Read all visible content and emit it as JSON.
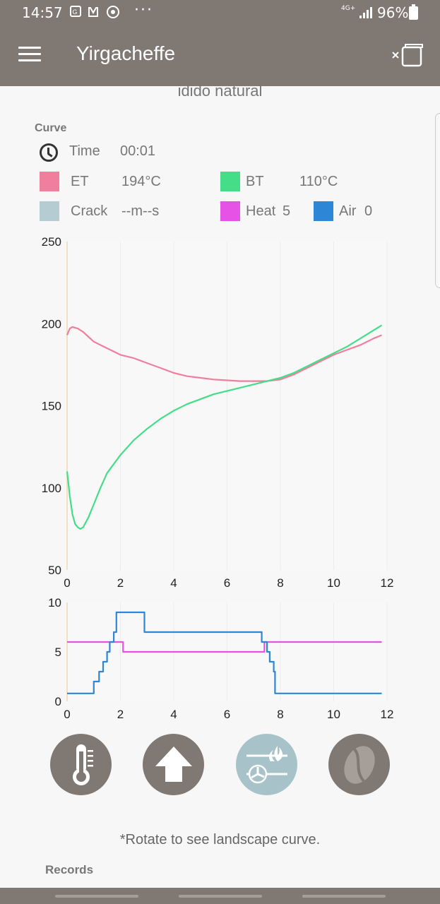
{
  "status_bar": {
    "time": "14:57",
    "network": "4G+",
    "battery": "96%"
  },
  "app_bar": {
    "title": "Yirgacheffe"
  },
  "subtitle": "idido natural",
  "curve_section": {
    "label": "Curve",
    "time_label": "Time",
    "time_value": "00:01",
    "et_label": "ET",
    "et_value": "194°C",
    "bt_label": "BT",
    "bt_value": "110°C",
    "crack_label": "Crack",
    "crack_value": "--m--s",
    "heat_label": "Heat",
    "heat_value": "5",
    "air_label": "Air",
    "air_value": "0"
  },
  "colors": {
    "et": "#ef7f9c",
    "bt": "#44dd88",
    "crack": "#b4ccd2",
    "heat": "#e552e5",
    "air": "#2e86d6",
    "appbar": "#807872",
    "active_button": "#a7c3c9"
  },
  "chart_data": [
    {
      "type": "line",
      "xlim": [
        0,
        12
      ],
      "ylim": [
        50,
        250
      ],
      "x_ticks": [
        "0",
        "2",
        "4",
        "6",
        "8",
        "10",
        "12"
      ],
      "y_ticks": [
        "250",
        "200",
        "150",
        "100",
        "50"
      ],
      "series": [
        {
          "name": "ET",
          "color": "#ef7f9c",
          "x": [
            0,
            0.1,
            0.2,
            0.4,
            0.6,
            0.8,
            1,
            1.5,
            2,
            2.5,
            3,
            3.5,
            4,
            4.5,
            5,
            5.5,
            6,
            6.5,
            7,
            7.5,
            8,
            8.5,
            9,
            9.5,
            10,
            10.5,
            11,
            11.5,
            11.8
          ],
          "y": [
            193,
            197,
            198,
            197,
            195,
            192,
            189,
            185,
            181,
            179,
            176,
            173,
            170,
            168,
            167,
            166,
            165.5,
            165,
            165,
            165,
            166,
            169,
            173,
            177,
            181,
            184,
            187,
            191,
            193
          ]
        },
        {
          "name": "BT",
          "color": "#44dd88",
          "x": [
            0,
            0.1,
            0.2,
            0.3,
            0.4,
            0.5,
            0.6,
            0.8,
            1,
            1.25,
            1.5,
            2,
            2.5,
            3,
            3.5,
            4,
            4.5,
            5,
            5.5,
            6,
            6.5,
            7,
            7.5,
            8,
            8.5,
            9,
            9.5,
            10,
            10.5,
            11,
            11.5,
            11.8
          ],
          "y": [
            110,
            95,
            84,
            78,
            76,
            75,
            76,
            82,
            90,
            100,
            109,
            120,
            129,
            136,
            142,
            147,
            151,
            154,
            157,
            159,
            161,
            163,
            165,
            167,
            170,
            174,
            178,
            182,
            186,
            191,
            196,
            199
          ]
        }
      ]
    },
    {
      "type": "line",
      "xlim": [
        0,
        12
      ],
      "ylim": [
        0,
        10
      ],
      "x_ticks": [
        "0",
        "2",
        "4",
        "6",
        "8",
        "10",
        "12"
      ],
      "y_ticks": [
        "10",
        "5",
        "0"
      ],
      "series": [
        {
          "name": "Heat",
          "color": "#e552e5",
          "x": [
            0,
            2.1,
            2.1,
            7.4,
            7.4,
            11.8
          ],
          "y": [
            6,
            6,
            5,
            5,
            6,
            6
          ]
        },
        {
          "name": "Air",
          "color": "#2e86d6",
          "x": [
            0,
            1,
            1,
            1.2,
            1.2,
            1.35,
            1.35,
            1.5,
            1.5,
            1.6,
            1.6,
            1.75,
            1.75,
            1.85,
            1.85,
            2.1,
            2.1,
            2.9,
            2.9,
            7.3,
            7.3,
            7.5,
            7.5,
            7.6,
            7.6,
            7.75,
            7.75,
            7.8,
            7.8,
            11.8
          ],
          "y": [
            0.8,
            0.8,
            2,
            2,
            3,
            3,
            4,
            4,
            5,
            5,
            6,
            6,
            7,
            7,
            9,
            9,
            9,
            9,
            7,
            7,
            6,
            6,
            5,
            5,
            4,
            4,
            3,
            3,
            0.8,
            0.8
          ]
        }
      ]
    }
  ],
  "footer": {
    "note": "*Rotate to see landscape curve.",
    "records_label": "Records"
  }
}
